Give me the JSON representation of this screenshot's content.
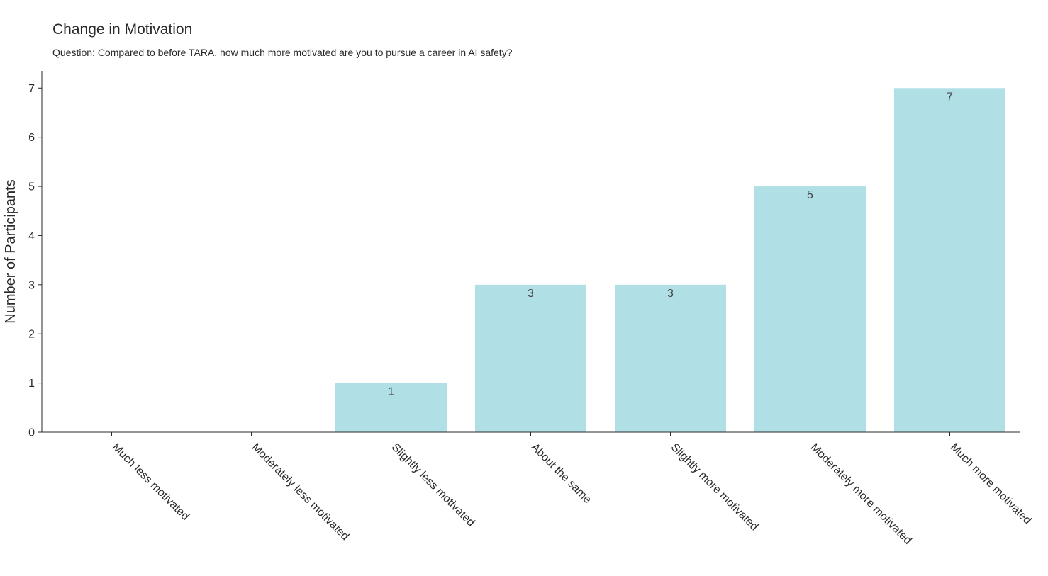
{
  "chart_data": {
    "type": "bar",
    "title": "Change in Motivation",
    "subtitle": "Question: Compared to before TARA, how much more motivated are you to pursue a career in AI safety?",
    "xlabel": "",
    "ylabel": "Number of Participants",
    "categories": [
      "Much less motivated",
      "Moderately less motivated",
      "Slightly less motivated",
      "About the same",
      "Slightly more motivated",
      "Moderately more motivated",
      "Much more motivated"
    ],
    "values": [
      0,
      0,
      1,
      3,
      3,
      5,
      7
    ],
    "data_labels": [
      "",
      "",
      "1",
      "3",
      "3",
      "5",
      "7"
    ],
    "ylim": [
      0,
      7.35
    ],
    "yticks": [
      0,
      1,
      2,
      3,
      4,
      5,
      6,
      7
    ],
    "grid": false,
    "legend": "none",
    "colors": {
      "bar": "#b0dfe5",
      "axis": "#2a2a2a",
      "text": "#2a2a2a",
      "data_label": "#444444"
    }
  }
}
